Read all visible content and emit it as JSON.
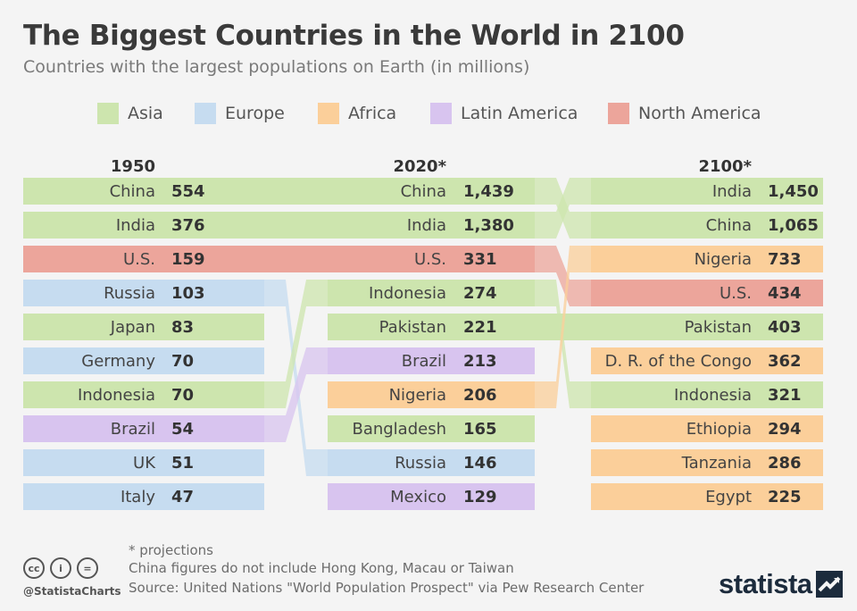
{
  "title": "The Biggest Countries in the World in 2100",
  "subtitle": "Countries with the largest populations on Earth (in millions)",
  "legend": [
    {
      "name": "Asia",
      "color": "#cde5ae"
    },
    {
      "name": "Europe",
      "color": "#c6dcf0"
    },
    {
      "name": "Africa",
      "color": "#fbcf9a"
    },
    {
      "name": "Latin America",
      "color": "#d8c4ef"
    },
    {
      "name": "North America",
      "color": "#eca59b"
    }
  ],
  "chart_data": {
    "type": "bump",
    "title": "The Biggest Countries in the World in 2100",
    "subtitle": "Countries with the largest populations on Earth (in millions)",
    "unit": "millions",
    "columns": [
      {
        "year": "1950",
        "rows": [
          {
            "country": "China",
            "value": 554,
            "display": "554",
            "region": "Asia"
          },
          {
            "country": "India",
            "value": 376,
            "display": "376",
            "region": "Asia"
          },
          {
            "country": "U.S.",
            "value": 159,
            "display": "159",
            "region": "North America"
          },
          {
            "country": "Russia",
            "value": 103,
            "display": "103",
            "region": "Europe"
          },
          {
            "country": "Japan",
            "value": 83,
            "display": "83",
            "region": "Asia"
          },
          {
            "country": "Germany",
            "value": 70,
            "display": "70",
            "region": "Europe"
          },
          {
            "country": "Indonesia",
            "value": 70,
            "display": "70",
            "region": "Asia"
          },
          {
            "country": "Brazil",
            "value": 54,
            "display": "54",
            "region": "Latin America"
          },
          {
            "country": "UK",
            "value": 51,
            "display": "51",
            "region": "Europe"
          },
          {
            "country": "Italy",
            "value": 47,
            "display": "47",
            "region": "Europe"
          }
        ]
      },
      {
        "year": "2020*",
        "rows": [
          {
            "country": "China",
            "value": 1439,
            "display": "1,439",
            "region": "Asia"
          },
          {
            "country": "India",
            "value": 1380,
            "display": "1,380",
            "region": "Asia"
          },
          {
            "country": "U.S.",
            "value": 331,
            "display": "331",
            "region": "North America"
          },
          {
            "country": "Indonesia",
            "value": 274,
            "display": "274",
            "region": "Asia"
          },
          {
            "country": "Pakistan",
            "value": 221,
            "display": "221",
            "region": "Asia"
          },
          {
            "country": "Brazil",
            "value": 213,
            "display": "213",
            "region": "Latin America"
          },
          {
            "country": "Nigeria",
            "value": 206,
            "display": "206",
            "region": "Africa"
          },
          {
            "country": "Bangladesh",
            "value": 165,
            "display": "165",
            "region": "Asia"
          },
          {
            "country": "Russia",
            "value": 146,
            "display": "146",
            "region": "Europe"
          },
          {
            "country": "Mexico",
            "value": 129,
            "display": "129",
            "region": "Latin America"
          }
        ]
      },
      {
        "year": "2100*",
        "rows": [
          {
            "country": "India",
            "value": 1450,
            "display": "1,450",
            "region": "Asia"
          },
          {
            "country": "China",
            "value": 1065,
            "display": "1,065",
            "region": "Asia"
          },
          {
            "country": "Nigeria",
            "value": 733,
            "display": "733",
            "region": "Africa"
          },
          {
            "country": "U.S.",
            "value": 434,
            "display": "434",
            "region": "North America"
          },
          {
            "country": "Pakistan",
            "value": 403,
            "display": "403",
            "region": "Asia"
          },
          {
            "country": "D. R. of the Congo",
            "value": 362,
            "display": "362",
            "region": "Africa"
          },
          {
            "country": "Indonesia",
            "value": 321,
            "display": "321",
            "region": "Asia"
          },
          {
            "country": "Ethiopia",
            "value": 294,
            "display": "294",
            "region": "Africa"
          },
          {
            "country": "Tanzania",
            "value": 286,
            "display": "286",
            "region": "Africa"
          },
          {
            "country": "Egypt",
            "value": 225,
            "display": "225",
            "region": "Africa"
          }
        ]
      }
    ]
  },
  "footer": {
    "note": "* projections",
    "disclaimer": "China figures do not include Hong Kong, Macau or Taiwan",
    "source": "Source: United Nations \"World Population Prospect\" via Pew Research Center",
    "handle": "@StatistaCharts",
    "brand": "statista",
    "license_icons": [
      "cc",
      "i",
      "="
    ]
  }
}
